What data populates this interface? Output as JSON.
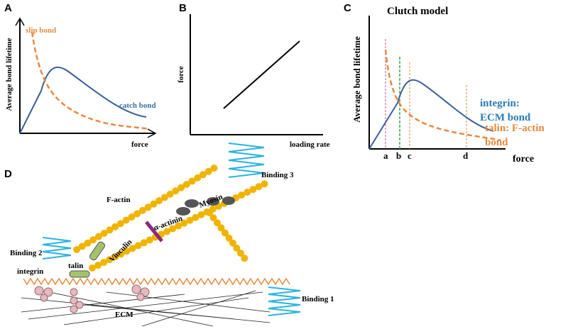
{
  "panels": {
    "A": {
      "label": "A",
      "y_axis": "Average bond lifetime",
      "x_axis": "force",
      "slip": "slip bond",
      "catch": "catch bond"
    },
    "B": {
      "label": "B",
      "y_axis": "force",
      "x_axis": "loading rate"
    },
    "C": {
      "label": "C",
      "title": "Clutch model",
      "y_axis": "Average bond lifetime",
      "x_axis": "force",
      "markers": [
        "a",
        "b",
        "c",
        "d"
      ],
      "integrin_label": [
        "integrin:",
        "ECM bond"
      ],
      "talin_label": [
        "talin: F-actin",
        "bond"
      ]
    },
    "D": {
      "label": "D",
      "binding3": "Binding 3",
      "binding2": "Binding 2",
      "binding1": "Binding 1",
      "factin": "F-actin",
      "myosin": "Myosin",
      "actinin": "α-actinin",
      "vinculin": "Vinculin",
      "integrin": "integrin",
      "talin": "talin",
      "ecm": "ECM"
    }
  }
}
